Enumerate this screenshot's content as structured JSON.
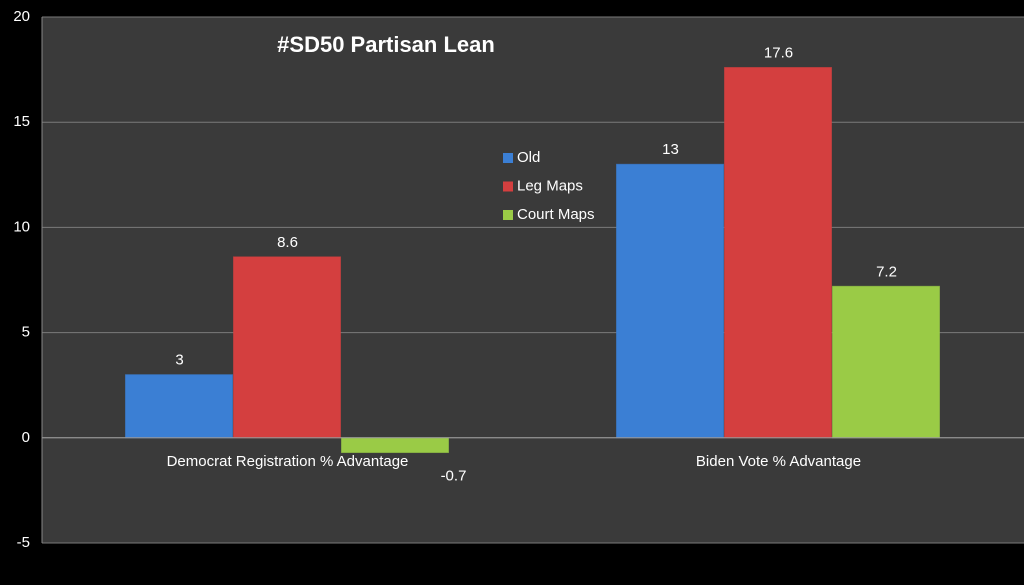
{
  "chart_data": {
    "type": "bar",
    "title": "#SD50 Partisan Lean",
    "categories": [
      "Democrat Registration % Advantage",
      "Biden Vote % Advantage"
    ],
    "series": [
      {
        "name": "Old",
        "color": "#3b7fd4",
        "values": [
          3,
          13
        ]
      },
      {
        "name": "Leg Maps",
        "color": "#d43f3f",
        "values": [
          8.6,
          17.6
        ]
      },
      {
        "name": "Court Maps",
        "color": "#9acb46",
        "values": [
          -0.7,
          7.2
        ]
      }
    ],
    "ylim": [
      -5,
      20
    ],
    "yticks": [
      -5,
      0,
      5,
      10,
      15,
      20
    ],
    "grid": true
  }
}
